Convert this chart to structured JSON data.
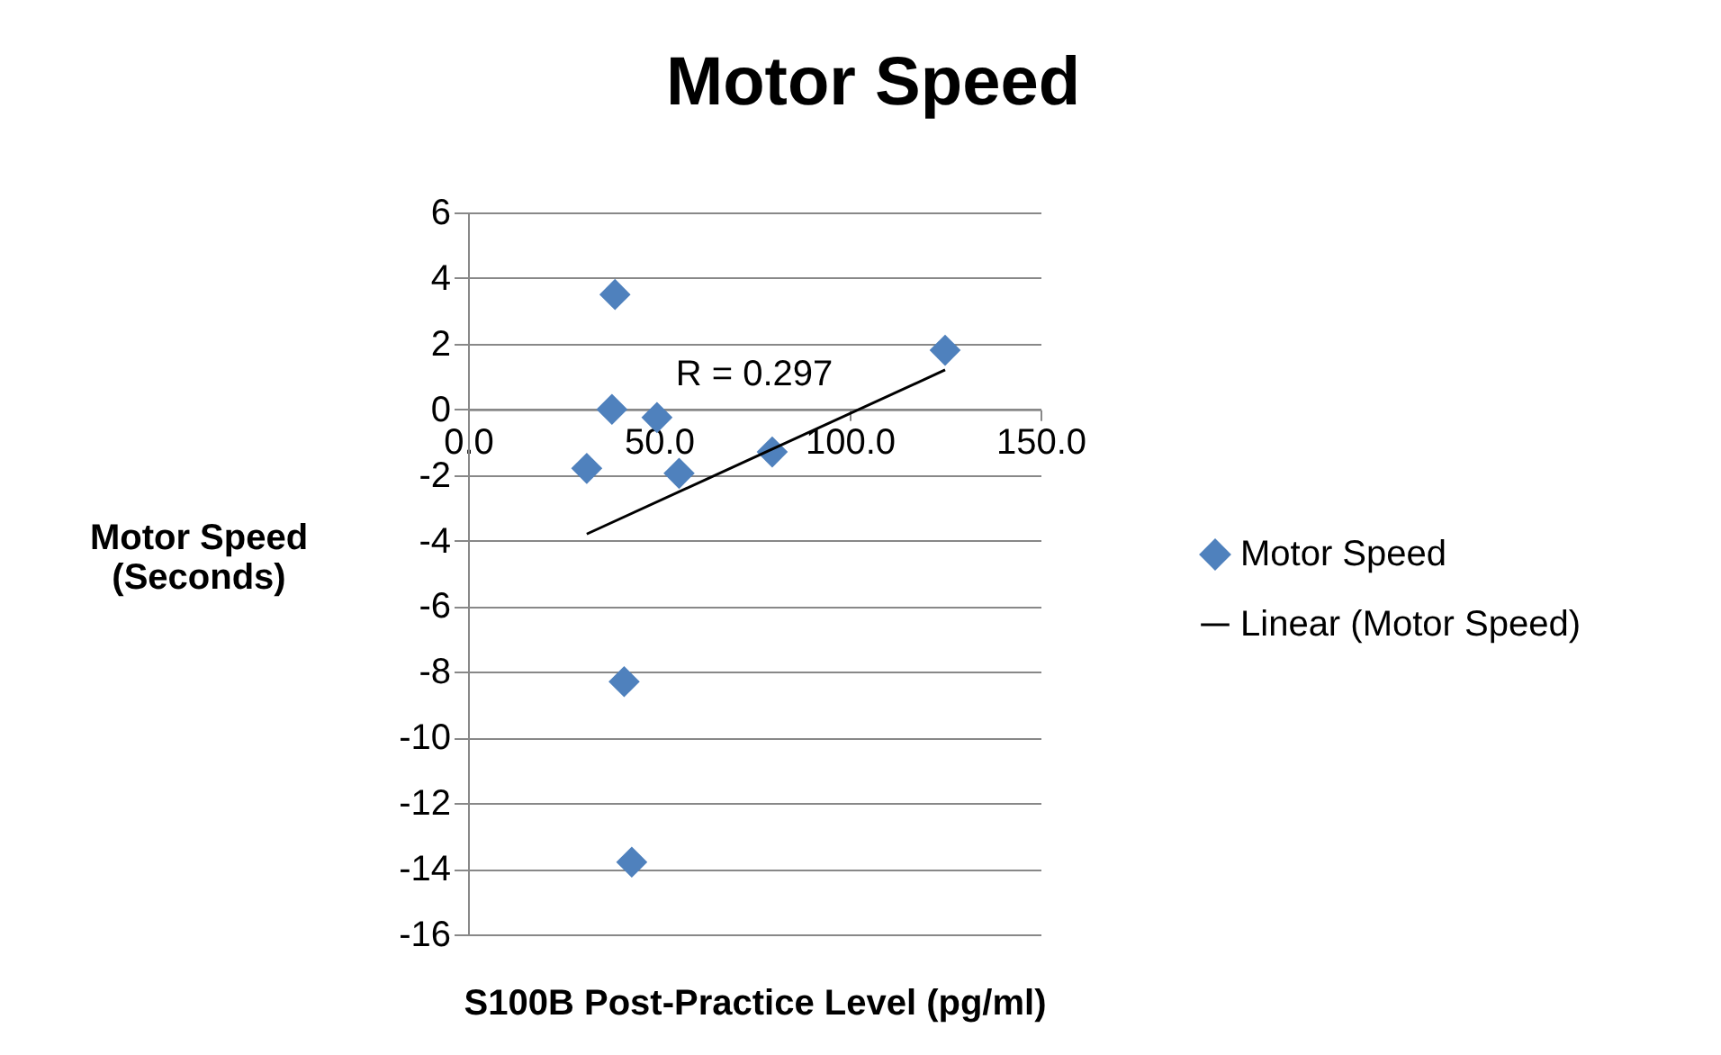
{
  "chart_data": {
    "type": "scatter",
    "title": "Motor Speed",
    "xlabel": "S100B Post-Practice Level (pg/ml)",
    "ylabel": "Motor Speed\n(Seconds)",
    "xlim": [
      0,
      150
    ],
    "xticks": [
      {
        "value": 0,
        "label": "0.0"
      },
      {
        "value": 50,
        "label": "50.0"
      },
      {
        "value": 100,
        "label": "100.0"
      },
      {
        "value": 150,
        "label": "150.0"
      }
    ],
    "ylim": [
      -16,
      6
    ],
    "yticks": [
      -16,
      -14,
      -12,
      -10,
      -8,
      -6,
      -4,
      -2,
      0,
      2,
      4,
      6
    ],
    "grid": "y",
    "legend": "right",
    "series": [
      {
        "name": "Motor Speed",
        "marker": "diamond",
        "color": "#4f81bd",
        "x": [
          38.5,
          37.7,
          49.5,
          31.1,
          55.3,
          79.7,
          125,
          40.9,
          42.9
        ],
        "values": [
          3.5,
          0,
          -0.25,
          -1.8,
          -1.95,
          -1.3,
          1.8,
          -8.3,
          -13.8
        ]
      },
      {
        "name": "Linear (Motor Speed)",
        "type": "line",
        "color": "#000000",
        "x": [
          31.1,
          125
        ],
        "values": [
          -3.8,
          1.2
        ]
      }
    ],
    "annotations": [
      "R = 0.297"
    ]
  }
}
